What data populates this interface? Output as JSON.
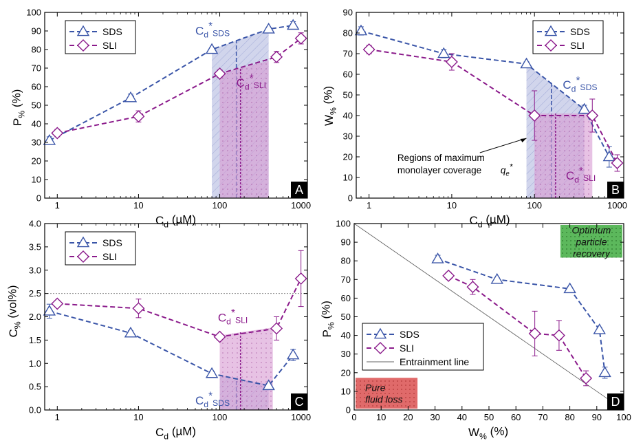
{
  "colors": {
    "sds": "#3a55a8",
    "sli": "#8b1a8b",
    "sds_fill": "#aab2dc",
    "sli_fill": "#d79ad2",
    "recovery_box": "#5cb85c",
    "loss_box": "#e06a6a",
    "ref_line": "#888888"
  },
  "chart_data": [
    {
      "id": "A",
      "type": "line",
      "panel_letter": "A",
      "xlabel": "C_d (µM)",
      "ylabel": "P_% (%)",
      "xscale": "log",
      "xlim": [
        0.7,
        1200
      ],
      "ylim": [
        0,
        100
      ],
      "x_ticks": [
        1,
        10,
        100,
        1000
      ],
      "x_tick_labels": [
        "1",
        "10",
        "100",
        "1000"
      ],
      "y_ticks": [
        0,
        10,
        20,
        30,
        40,
        50,
        60,
        70,
        80,
        90,
        100
      ],
      "y_tick_labels": [
        "0",
        "10",
        "20",
        "30",
        "40",
        "50",
        "60",
        "70",
        "80",
        "90",
        "100"
      ],
      "legend": {
        "position": "top-left",
        "entries": [
          "SDS",
          "SLI"
        ]
      },
      "series": [
        {
          "name": "SDS",
          "marker": "triangle",
          "x": [
            0.8,
            8,
            80,
            400,
            800
          ],
          "y": [
            31,
            54,
            80,
            91,
            93
          ],
          "err": [
            2,
            2,
            1,
            1,
            2
          ]
        },
        {
          "name": "SLI",
          "marker": "diamond",
          "x": [
            1,
            10,
            100,
            500,
            1000
          ],
          "y": [
            35,
            44,
            67,
            76,
            86
          ],
          "err": [
            2,
            3,
            2,
            3,
            3
          ]
        }
      ],
      "regions": [
        {
          "series": "SDS",
          "x": [
            80,
            400
          ],
          "y_top": [
            80,
            91
          ],
          "cstar": 160,
          "label": "C_d*_SDS"
        },
        {
          "series": "SLI",
          "x": [
            100,
            400
          ],
          "y_top": [
            67,
            74
          ],
          "cstar": 180,
          "label": "C_d*_SLI"
        }
      ]
    },
    {
      "id": "B",
      "type": "line",
      "panel_letter": "B",
      "xlabel": "C_d (µM)",
      "ylabel": "W_% (%)",
      "xscale": "log",
      "xlim": [
        0.7,
        1200
      ],
      "ylim": [
        0,
        90
      ],
      "x_ticks": [
        1,
        10,
        100,
        1000
      ],
      "x_tick_labels": [
        "1",
        "10",
        "100",
        "1000"
      ],
      "y_ticks": [
        0,
        10,
        20,
        30,
        40,
        50,
        60,
        70,
        80,
        90
      ],
      "y_tick_labels": [
        "0",
        "10",
        "20",
        "30",
        "40",
        "50",
        "60",
        "70",
        "80",
        "90"
      ],
      "legend": {
        "position": "top-right",
        "entries": [
          "SDS",
          "SLI"
        ]
      },
      "series": [
        {
          "name": "SDS",
          "marker": "triangle",
          "x": [
            0.8,
            8,
            80,
            400,
            800
          ],
          "y": [
            81,
            70,
            65,
            43,
            20
          ],
          "err": [
            2,
            2,
            1,
            2,
            5
          ]
        },
        {
          "name": "SLI",
          "marker": "diamond",
          "x": [
            1,
            10,
            100,
            500,
            1000
          ],
          "y": [
            72,
            66,
            40,
            40,
            17
          ],
          "err": [
            2,
            4,
            12,
            8,
            4
          ]
        }
      ],
      "regions": [
        {
          "series": "SDS",
          "x": [
            80,
            400
          ],
          "y_top": [
            65,
            43
          ],
          "cstar": 160,
          "label": "C_d*_SDS"
        },
        {
          "series": "SLI",
          "x": [
            100,
            500
          ],
          "y_top": [
            41,
            41
          ],
          "cstar": 180,
          "label": "C_d*_SLI"
        }
      ],
      "annotation": {
        "line1": "Regions of maximum",
        "line2": "monolayer coverage q_e*"
      }
    },
    {
      "id": "C",
      "type": "line",
      "panel_letter": "C",
      "xlabel": "C_d (µM)",
      "ylabel": "C_% (vol%)",
      "xscale": "log",
      "xlim": [
        0.7,
        1200
      ],
      "ylim": [
        0,
        4
      ],
      "x_ticks": [
        1,
        10,
        100,
        1000
      ],
      "x_tick_labels": [
        "1",
        "10",
        "100",
        "1000"
      ],
      "y_ticks": [
        0,
        0.5,
        1,
        1.5,
        2,
        2.5,
        3,
        3.5,
        4
      ],
      "y_tick_labels": [
        "0.0",
        "0.5",
        "1.0",
        "1.5",
        "2.0",
        "2.5",
        "3.0",
        "3.5",
        "4.0"
      ],
      "legend": {
        "position": "top-left",
        "entries": [
          "SDS",
          "SLI"
        ]
      },
      "hline": 2.5,
      "series": [
        {
          "name": "SDS",
          "marker": "triangle",
          "x": [
            0.8,
            8,
            80,
            400,
            800
          ],
          "y": [
            2.12,
            1.65,
            0.78,
            0.52,
            1.18
          ],
          "err": [
            0.15,
            0.05,
            0.05,
            0.05,
            0.12
          ]
        },
        {
          "name": "SLI",
          "marker": "diamond",
          "x": [
            1,
            10,
            100,
            500,
            1000
          ],
          "y": [
            2.28,
            2.18,
            1.57,
            1.75,
            2.82
          ],
          "err": [
            0.05,
            0.2,
            0.05,
            0.25,
            0.6
          ]
        }
      ],
      "regions": [
        {
          "series": "SDS",
          "x": [
            100,
            400
          ],
          "y_top": [
            0.75,
            0.55
          ],
          "cstar": 160,
          "label": "C_d*_SDS"
        },
        {
          "series": "SLI",
          "x": [
            100,
            450
          ],
          "y_top": [
            1.6,
            1.77
          ],
          "cstar": 180,
          "label": "C_d*_SLI"
        }
      ]
    },
    {
      "id": "D",
      "type": "line",
      "panel_letter": "D",
      "xlabel": "W_% (%)",
      "ylabel": "P_% (%)",
      "xscale": "linear",
      "xlim": [
        0,
        100
      ],
      "ylim": [
        0,
        100
      ],
      "x_ticks": [
        0,
        10,
        20,
        30,
        40,
        50,
        60,
        70,
        80,
        90,
        100
      ],
      "x_tick_labels": [
        "0",
        "10",
        "20",
        "30",
        "40",
        "50",
        "60",
        "70",
        "80",
        "90",
        "100"
      ],
      "y_ticks": [
        0,
        10,
        20,
        30,
        40,
        50,
        60,
        70,
        80,
        90,
        100
      ],
      "y_tick_labels": [
        "0",
        "10",
        "20",
        "30",
        "40",
        "50",
        "60",
        "70",
        "80",
        "90",
        "100"
      ],
      "legend": {
        "position": "bottom-left",
        "entries": [
          "SDS",
          "SLI",
          "Entrainment line"
        ]
      },
      "series": [
        {
          "name": "SDS",
          "marker": "triangle",
          "x": [
            31,
            53,
            80,
            91,
            93
          ],
          "y": [
            81,
            70,
            65,
            43,
            20
          ],
          "err": [
            2,
            1,
            1,
            1,
            3
          ]
        },
        {
          "name": "SLI",
          "marker": "diamond",
          "x": [
            35,
            44,
            67,
            76,
            86
          ],
          "y": [
            72,
            66,
            41,
            40,
            17
          ],
          "err": [
            2,
            4,
            12,
            8,
            4
          ]
        }
      ],
      "entrainment_line": {
        "x": [
          0,
          100
        ],
        "y": [
          100,
          0
        ]
      },
      "boxes": [
        {
          "label_line1": "Optimum",
          "label_line2": "particle",
          "label_line3": "recovery",
          "x": [
            76,
            100
          ],
          "y": [
            81,
            100
          ],
          "color": "recovery"
        },
        {
          "label_line1": "Pure",
          "label_line2": "fluid loss",
          "label_line3": "",
          "x": [
            0,
            24
          ],
          "y": [
            0,
            18
          ],
          "color": "loss"
        }
      ]
    }
  ]
}
